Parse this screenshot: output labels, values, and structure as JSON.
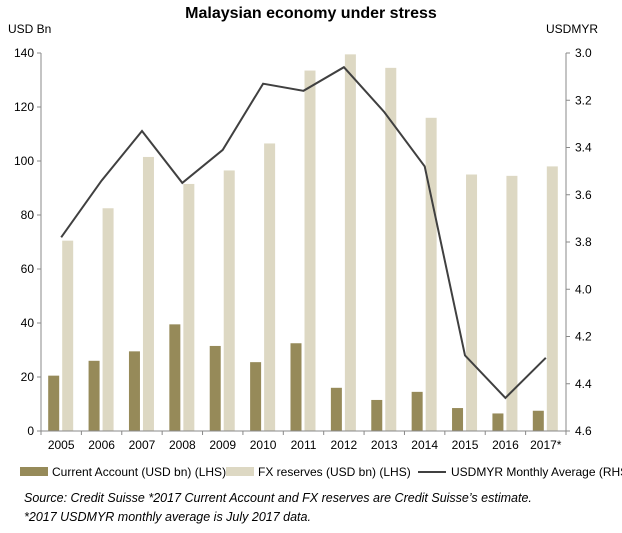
{
  "chart_data": {
    "type": "bar+line",
    "title": "Malaysian economy under stress",
    "left_axis_label": "USD Bn",
    "right_axis_label": "USDMYR",
    "categories": [
      "2005",
      "2006",
      "2007",
      "2008",
      "2009",
      "2010",
      "2011",
      "2012",
      "2013",
      "2014",
      "2015",
      "2016",
      "2017*"
    ],
    "left_ylim": [
      0,
      140
    ],
    "left_ticks": [
      "0",
      "20",
      "40",
      "60",
      "80",
      "100",
      "120",
      "140"
    ],
    "right_ylim": [
      3.0,
      4.6
    ],
    "right_inverted": true,
    "right_ticks": [
      "3.0",
      "3.2",
      "3.4",
      "3.6",
      "3.8",
      "4.0",
      "4.2",
      "4.4",
      "4.6"
    ],
    "grid": false,
    "legend_position": "bottom",
    "series": [
      {
        "name": "Current Account (USD bn) (LHS)",
        "kind": "bar",
        "axis": "left",
        "color": "#968a59",
        "values": [
          20.5,
          26,
          29.5,
          39.5,
          31.5,
          25.5,
          32.5,
          16,
          11.5,
          14.5,
          8.5,
          6.5,
          7.5
        ]
      },
      {
        "name": "FX reserves (USD bn) (LHS)",
        "kind": "bar",
        "axis": "left",
        "color": "#ddd8c3",
        "values": [
          70.5,
          82.5,
          101.5,
          91.5,
          96.5,
          106.5,
          133.5,
          139.5,
          134.5,
          116,
          95,
          94.5,
          98
        ]
      },
      {
        "name": "USDMYR Monthly Average (RHS)",
        "kind": "line",
        "axis": "right",
        "color": "#404040",
        "values": [
          3.78,
          3.54,
          3.33,
          3.55,
          3.41,
          3.13,
          3.16,
          3.06,
          3.25,
          3.48,
          4.28,
          4.46,
          4.29
        ]
      }
    ]
  },
  "source": {
    "line1": "Source: Credit Suisse *2017  Current Account and FX reserves are Credit Suisse’s estimate.",
    "line2": "*2017  USDMYR monthly average is July 2017 data."
  }
}
